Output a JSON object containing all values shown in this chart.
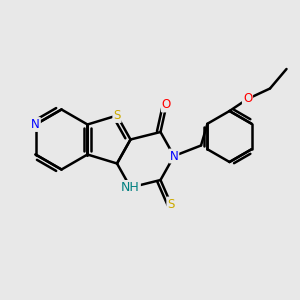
{
  "background_color": "#e8e8e8",
  "bond_color": "#000000",
  "bond_width": 1.8,
  "atom_colors": {
    "N": "#0000ff",
    "S": "#ccaa00",
    "O": "#ff0000",
    "H": "#008080",
    "C": "#000000"
  },
  "font_size": 8.5,
  "figsize": [
    3.0,
    3.0
  ],
  "dpi": 100
}
